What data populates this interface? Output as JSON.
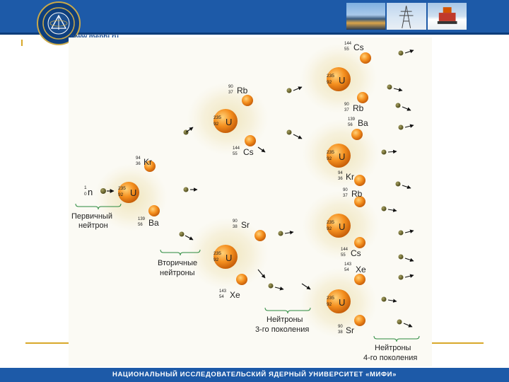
{
  "header": {
    "url": "www.mephi.ru"
  },
  "footer": {
    "text": "НАЦИОНАЛЬНЫЙ ИССЛЕДОВАТЕЛЬСКИЙ ЯДЕРНЫЙ УНИВЕРСИТЕТ «МИФИ»"
  },
  "colors": {
    "header_blue": "#1d5aa8",
    "accent_gold": "#d8a82a",
    "nucleus_orange": "#f28a1e",
    "neutron_olive": "#6b6b2a"
  },
  "diagram": {
    "neutron": {
      "symbol": "n",
      "mass": "1",
      "charge": "0"
    },
    "uranium": {
      "symbol": "U",
      "mass": "235",
      "charge": "92"
    },
    "fragments": [
      {
        "symbol": "Cs",
        "mass": "144",
        "charge": "55"
      },
      {
        "symbol": "Rb",
        "mass": "90",
        "charge": "37"
      },
      {
        "symbol": "Rb",
        "mass": "90",
        "charge": "37"
      },
      {
        "symbol": "Ba",
        "mass": "139",
        "charge": "56"
      },
      {
        "symbol": "Cs",
        "mass": "144",
        "charge": "55"
      },
      {
        "symbol": "Kr",
        "mass": "94",
        "charge": "36"
      },
      {
        "symbol": "Kr",
        "mass": "94",
        "charge": "36"
      },
      {
        "symbol": "Rb",
        "mass": "90",
        "charge": "37"
      },
      {
        "symbol": "Ba",
        "mass": "139",
        "charge": "56"
      },
      {
        "symbol": "Sr",
        "mass": "90",
        "charge": "38"
      },
      {
        "symbol": "Cs",
        "mass": "144",
        "charge": "55"
      },
      {
        "symbol": "Xe",
        "mass": "143",
        "charge": "54"
      },
      {
        "symbol": "Xe",
        "mass": "143",
        "charge": "54"
      },
      {
        "symbol": "Sr",
        "mass": "90",
        "charge": "38"
      }
    ],
    "labels": {
      "primary_line1": "Первичный",
      "primary_line2": "нейтрон",
      "secondary_line1": "Вторичные",
      "secondary_line2": "нейтроны",
      "third_line1": "Нейтроны",
      "third_line2": "3-го поколения",
      "fourth_line1": "Нейтроны",
      "fourth_line2": "4-го поколения"
    }
  }
}
